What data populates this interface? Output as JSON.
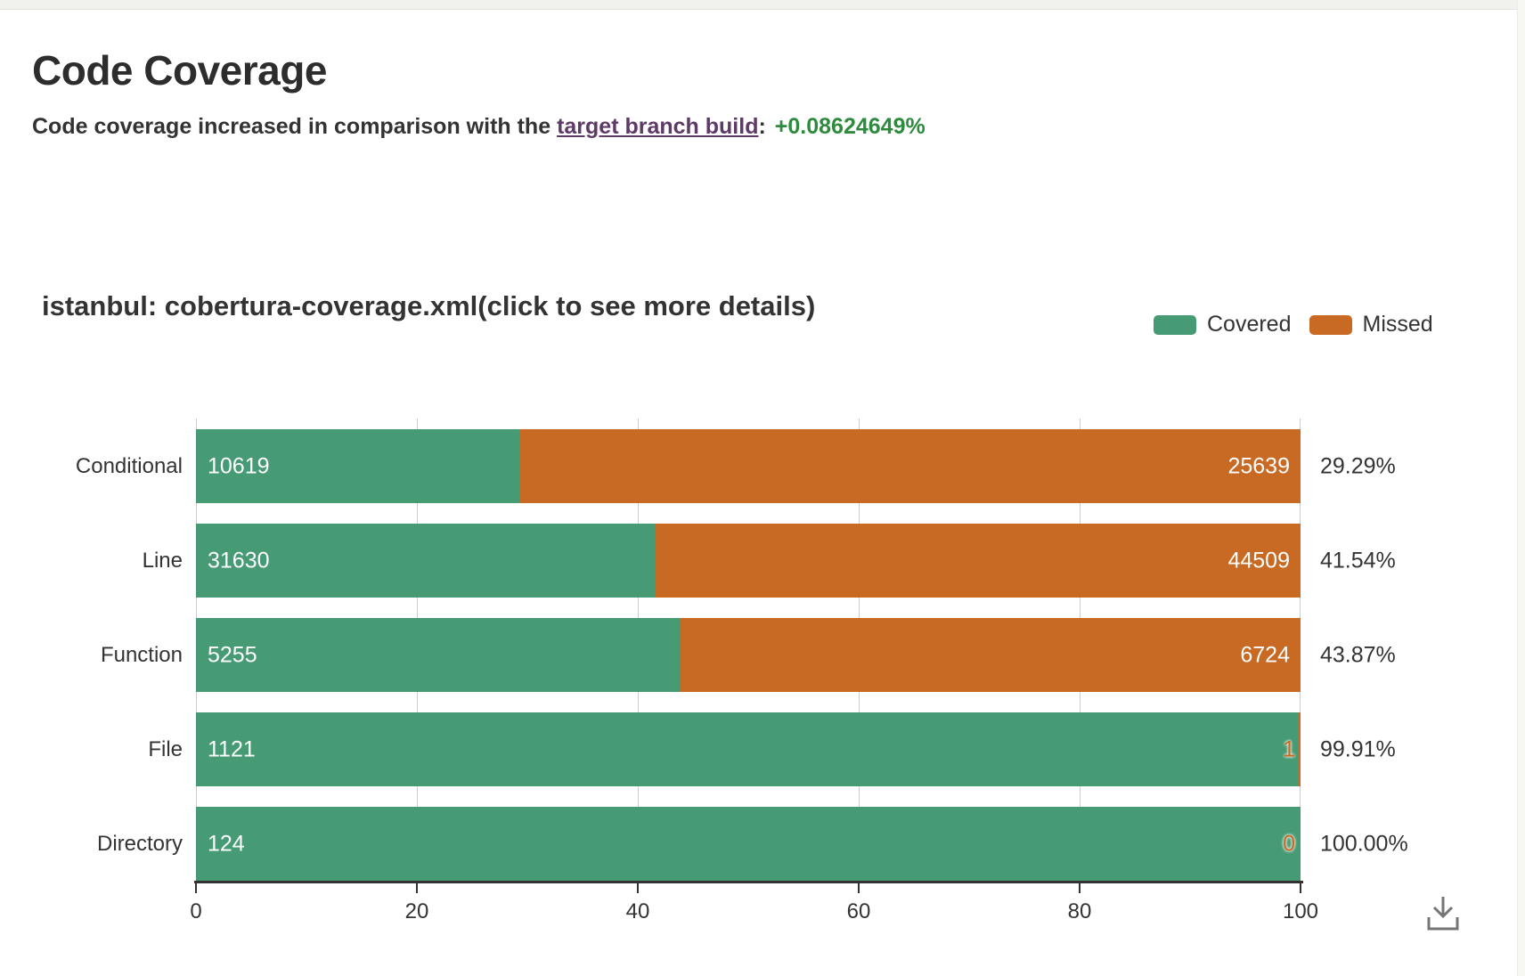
{
  "page": {
    "title": "Code Coverage",
    "subtitle_prefix": "Code coverage increased in comparison with the ",
    "subtitle_link": "target branch build",
    "subtitle_separator": ":",
    "subtitle_delta": "+0.08624649%"
  },
  "colors": {
    "link": "#5e3a66",
    "delta": "#2e8b3d",
    "covered": "#469a74",
    "missed": "#c86a24",
    "text": "#333333",
    "axis": "#333333",
    "grid": "#cccccc",
    "icon": "#757575"
  },
  "chart": {
    "title": "istanbul: cobertura-coverage.xml(click to see more details)",
    "legend": [
      {
        "label": "Covered",
        "color": "#469a74"
      },
      {
        "label": "Missed",
        "color": "#c86a24"
      }
    ]
  },
  "chart_data": {
    "type": "bar",
    "orientation": "horizontal",
    "stacked": true,
    "grid": true,
    "legend_position": "top-right",
    "categories": [
      "Conditional",
      "Line",
      "Function",
      "File",
      "Directory"
    ],
    "series": [
      {
        "name": "Covered",
        "color": "#469a74",
        "values": [
          10619,
          31630,
          5255,
          1121,
          124
        ]
      },
      {
        "name": "Missed",
        "color": "#c86a24",
        "values": [
          25639,
          44509,
          6724,
          1,
          0
        ]
      }
    ],
    "coverage_pct": [
      29.29,
      41.54,
      43.87,
      99.91,
      100.0
    ],
    "percentages": [
      "29.29%",
      "41.54%",
      "43.87%",
      "99.91%",
      "100.00%"
    ],
    "xlabel": "",
    "ylabel": "",
    "xlim": [
      0,
      100
    ],
    "x_ticks": [
      0,
      20,
      40,
      60,
      80,
      100
    ]
  },
  "toolbox": {
    "download_tooltip": "save as image"
  }
}
